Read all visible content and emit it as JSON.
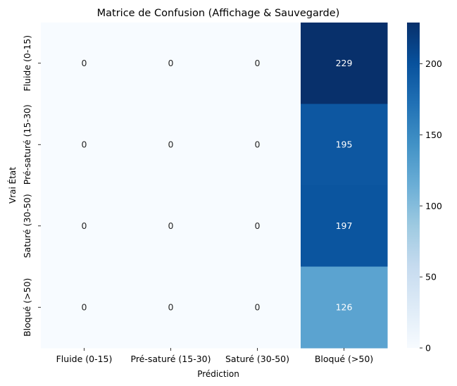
{
  "chart_data": {
    "type": "heatmap",
    "title": "Matrice de Confusion (Affichage & Sauvegarde)",
    "xlabel": "Prédiction",
    "ylabel": "Vrai État",
    "x_categories": [
      "Fluide (0-15)",
      "Pré-saturé (15-30)",
      "Saturé (30-50)",
      "Bloqué (>50)"
    ],
    "y_categories": [
      "Fluide (0-15)",
      "Pré-saturé (15-30)",
      "Saturé (30-50)",
      "Bloqué (>50)"
    ],
    "values": [
      [
        0,
        0,
        0,
        229
      ],
      [
        0,
        0,
        0,
        195
      ],
      [
        0,
        0,
        0,
        197
      ],
      [
        0,
        0,
        0,
        126
      ]
    ],
    "colormap": "Blues",
    "colorbar": {
      "range": [
        0,
        229
      ],
      "ticks": [
        0,
        50,
        100,
        150,
        200
      ]
    },
    "annotations": true
  }
}
